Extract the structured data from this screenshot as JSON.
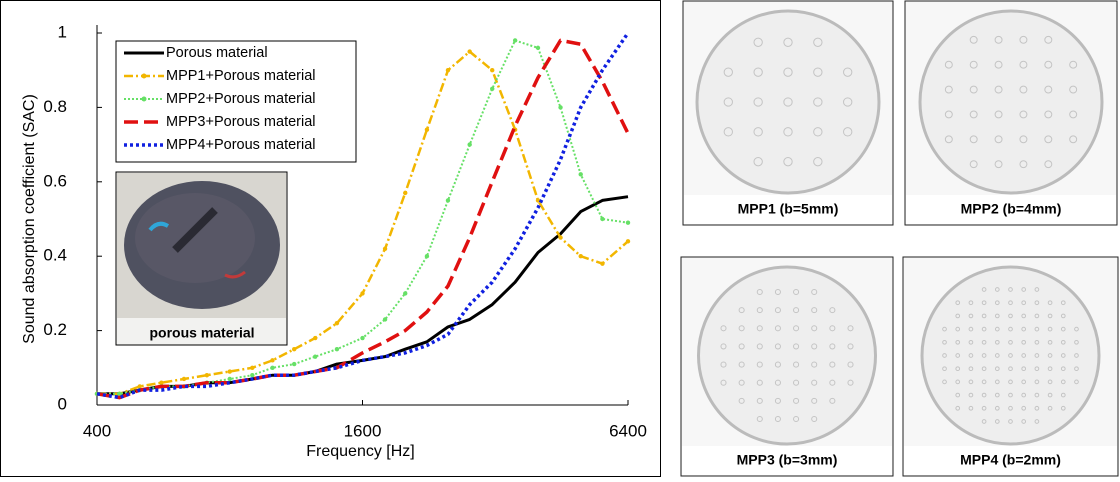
{
  "chart_data": {
    "type": "line",
    "x_label": "Frequency [Hz]",
    "y_label": "Sound absorption coefficient (SAC)",
    "x_scale": "log",
    "xlim": [
      400,
      6400
    ],
    "xticks": [
      400,
      1600,
      6400
    ],
    "ylim": [
      0,
      1
    ],
    "yticks": [
      0,
      0.2,
      0.4,
      0.6,
      0.8,
      1
    ],
    "legend": "upper left",
    "x": [
      400,
      450,
      500,
      560,
      630,
      710,
      800,
      900,
      1000,
      1120,
      1250,
      1400,
      1600,
      1800,
      2000,
      2240,
      2500,
      2800,
      3150,
      3550,
      4000,
      4500,
      5000,
      5600,
      6400
    ],
    "series": [
      {
        "name": "Porous material",
        "color": "#000000",
        "style": "solid",
        "marker": false,
        "values": [
          0.03,
          0.03,
          0.04,
          0.05,
          0.05,
          0.06,
          0.06,
          0.07,
          0.08,
          0.08,
          0.09,
          0.11,
          0.12,
          0.13,
          0.15,
          0.17,
          0.21,
          0.23,
          0.27,
          0.33,
          0.41,
          0.46,
          0.52,
          0.55,
          0.56
        ]
      },
      {
        "name": "MPP1+Porous material",
        "color": "#f2b600",
        "style": "dashed-dot",
        "marker": true,
        "values": [
          0.03,
          0.03,
          0.05,
          0.06,
          0.07,
          0.08,
          0.09,
          0.1,
          0.12,
          0.15,
          0.18,
          0.22,
          0.3,
          0.42,
          0.57,
          0.74,
          0.9,
          0.95,
          0.9,
          0.74,
          0.55,
          0.45,
          0.4,
          0.38,
          0.44
        ]
      },
      {
        "name": "MPP2+Porous material",
        "color": "#66e066",
        "style": "dotted",
        "marker": true,
        "values": [
          0.03,
          0.03,
          0.04,
          0.05,
          0.05,
          0.06,
          0.07,
          0.08,
          0.1,
          0.11,
          0.13,
          0.15,
          0.18,
          0.23,
          0.3,
          0.4,
          0.55,
          0.7,
          0.85,
          0.98,
          0.96,
          0.8,
          0.62,
          0.5,
          0.49
        ]
      },
      {
        "name": "MPP3+Porous material",
        "color": "#e01010",
        "style": "dashed",
        "marker": false,
        "values": [
          0.03,
          0.02,
          0.04,
          0.05,
          0.05,
          0.06,
          0.06,
          0.07,
          0.08,
          0.08,
          0.09,
          0.1,
          0.14,
          0.17,
          0.2,
          0.25,
          0.32,
          0.45,
          0.6,
          0.75,
          0.88,
          0.98,
          0.97,
          0.87,
          0.73
        ]
      },
      {
        "name": "MPP4+Porous material",
        "color": "#1020e0",
        "style": "dotted-dense",
        "marker": false,
        "values": [
          0.03,
          0.02,
          0.04,
          0.04,
          0.05,
          0.05,
          0.06,
          0.07,
          0.08,
          0.08,
          0.09,
          0.1,
          0.12,
          0.13,
          0.14,
          0.16,
          0.19,
          0.27,
          0.33,
          0.42,
          0.53,
          0.66,
          0.8,
          0.9,
          1.0
        ]
      }
    ],
    "inset_label": "porous material"
  },
  "panels": [
    {
      "label": "MPP1 (b=5mm)"
    },
    {
      "label": "MPP2 (b=4mm)"
    },
    {
      "label": "MPP3 (b=3mm)"
    },
    {
      "label": "MPP4 (b=2mm)"
    }
  ]
}
